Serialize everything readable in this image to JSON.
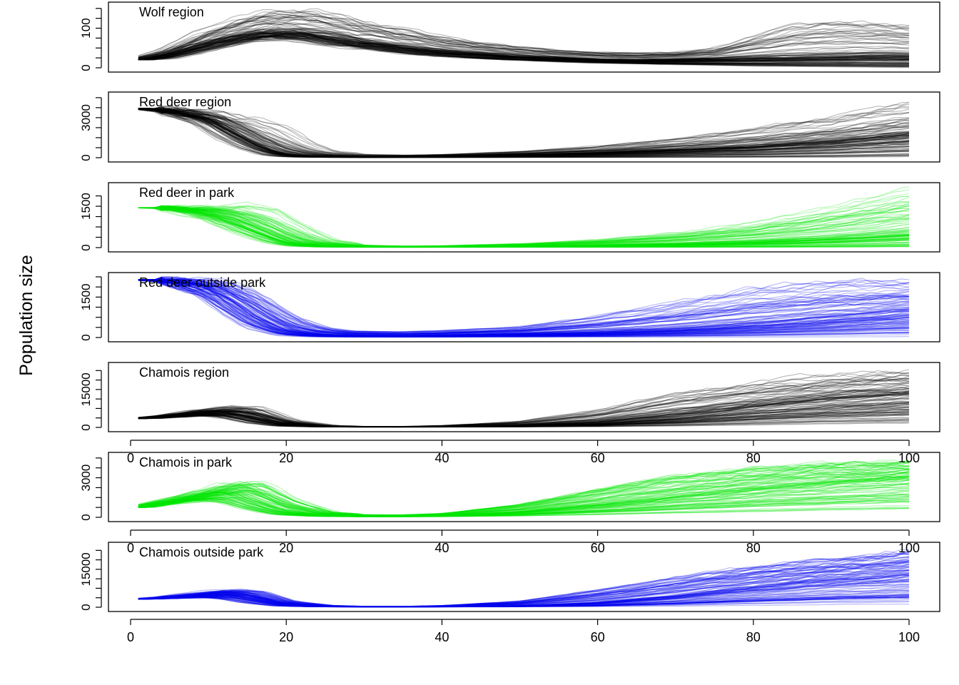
{
  "chart_data": {
    "type": "line",
    "ylabel": "Population size",
    "xlim": [
      0,
      100
    ],
    "x_ticks": [
      0,
      20,
      40,
      60,
      80,
      100
    ],
    "n_trajectories_per_panel": "many (stochastic simulation replicates)",
    "panels": [
      {
        "title": "Wolf region",
        "color": "#000000",
        "ylim": [
          0,
          155
        ],
        "y_ticks": [
          0,
          100
        ],
        "x_ticks_shown": false,
        "envelope": {
          "x": [
            1,
            5,
            10,
            15,
            18,
            22,
            25,
            30,
            35,
            40,
            45,
            50,
            55,
            60,
            65,
            70,
            75,
            80,
            85,
            90,
            95,
            100
          ],
          "low": [
            20,
            24,
            45,
            65,
            72,
            70,
            60,
            48,
            36,
            28,
            22,
            18,
            15,
            12,
            10,
            8,
            6,
            4,
            3,
            2,
            1,
            0
          ],
          "mid": [
            20,
            35,
            62,
            85,
            92,
            88,
            80,
            65,
            52,
            42,
            35,
            28,
            24,
            20,
            19,
            20,
            22,
            24,
            25,
            28,
            30,
            30
          ],
          "high": [
            20,
            45,
            95,
            130,
            145,
            150,
            140,
            120,
            100,
            80,
            65,
            55,
            45,
            40,
            38,
            40,
            50,
            80,
            110,
            120,
            118,
            110
          ]
        }
      },
      {
        "title": "Red deer region",
        "color": "#000000",
        "ylim": [
          0,
          4600
        ],
        "y_ticks": [
          0,
          3000
        ],
        "x_ticks_shown": false,
        "envelope": {
          "x": [
            1,
            5,
            10,
            12,
            15,
            18,
            20,
            22,
            25,
            30,
            35,
            40,
            50,
            60,
            70,
            80,
            90,
            100
          ],
          "low": [
            3700,
            3400,
            2400,
            1500,
            700,
            200,
            80,
            40,
            20,
            10,
            10,
            10,
            10,
            10,
            10,
            10,
            10,
            50
          ],
          "mid": [
            3700,
            3550,
            3000,
            2500,
            1500,
            600,
            300,
            150,
            80,
            50,
            60,
            100,
            200,
            350,
            550,
            800,
            1200,
            1700
          ],
          "high": [
            3700,
            3650,
            3450,
            3200,
            3000,
            2600,
            2000,
            1200,
            500,
            250,
            200,
            250,
            500,
            900,
            1500,
            2300,
            3200,
            4300
          ]
        }
      },
      {
        "title": "Red deer in park",
        "color": "#00e600",
        "ylim": [
          0,
          2200
        ],
        "y_ticks": [
          0,
          1500
        ],
        "x_ticks_shown": false,
        "envelope": {
          "x": [
            1,
            5,
            10,
            14,
            18,
            21,
            25,
            30,
            35,
            40,
            50,
            60,
            70,
            80,
            90,
            100
          ],
          "low": [
            1450,
            1400,
            1000,
            500,
            150,
            40,
            15,
            10,
            10,
            10,
            10,
            10,
            10,
            10,
            10,
            20
          ],
          "mid": [
            1450,
            1440,
            1300,
            1000,
            500,
            180,
            60,
            30,
            25,
            30,
            50,
            80,
            120,
            200,
            320,
            500
          ],
          "high": [
            1450,
            1460,
            1500,
            1600,
            1400,
            900,
            300,
            90,
            60,
            70,
            150,
            300,
            550,
            900,
            1500,
            2150
          ]
        }
      },
      {
        "title": "Red deer outside park",
        "color": "#0000ee",
        "ylim": [
          0,
          2250
        ],
        "y_ticks": [
          0,
          1500
        ],
        "x_ticks_shown": false,
        "envelope": {
          "x": [
            1,
            5,
            10,
            13,
            16,
            20,
            24,
            28,
            35,
            40,
            50,
            60,
            70,
            80,
            90,
            100
          ],
          "low": [
            2150,
            2050,
            1500,
            800,
            300,
            60,
            20,
            10,
            10,
            10,
            10,
            10,
            10,
            10,
            10,
            20
          ],
          "mid": [
            2150,
            2100,
            1900,
            1500,
            900,
            300,
            120,
            80,
            60,
            80,
            130,
            200,
            320,
            500,
            750,
            1000
          ],
          "high": [
            2150,
            2160,
            2150,
            2000,
            1700,
            900,
            400,
            250,
            220,
            260,
            400,
            800,
            1300,
            1850,
            2100,
            2100
          ]
        }
      },
      {
        "title": "Chamois region",
        "color": "#000000",
        "ylim": [
          0,
          24000
        ],
        "y_ticks": [
          0,
          15000
        ],
        "x_ticks_shown": true,
        "envelope": {
          "x": [
            1,
            5,
            10,
            13,
            16,
            20,
            25,
            30,
            35,
            40,
            50,
            60,
            70,
            80,
            90,
            100
          ],
          "low": [
            3500,
            4000,
            4500,
            3500,
            1500,
            400,
            150,
            100,
            100,
            100,
            150,
            200,
            300,
            500,
            800,
            1000
          ],
          "mid": [
            3500,
            4500,
            6000,
            6300,
            4500,
            1500,
            400,
            200,
            200,
            300,
            700,
            1800,
            4500,
            8000,
            11000,
            13000
          ],
          "high": [
            3500,
            5000,
            7500,
            8500,
            8000,
            3000,
            800,
            400,
            400,
            800,
            2500,
            7000,
            14000,
            18000,
            21000,
            23000
          ]
        }
      },
      {
        "title": "Chamois in park",
        "color": "#00e600",
        "ylim": [
          0,
          4600
        ],
        "y_ticks": [
          0,
          3000
        ],
        "x_ticks_shown": true,
        "envelope": {
          "x": [
            1,
            5,
            10,
            13,
            16,
            20,
            25,
            30,
            35,
            40,
            50,
            60,
            70,
            80,
            90,
            100
          ],
          "low": [
            750,
            1000,
            1200,
            900,
            400,
            120,
            50,
            30,
            30,
            40,
            60,
            100,
            150,
            200,
            250,
            300
          ],
          "mid": [
            750,
            1200,
            1700,
            1900,
            1300,
            450,
            150,
            90,
            80,
            120,
            400,
            900,
            1500,
            2100,
            2600,
            3000
          ],
          "high": [
            750,
            1350,
            2100,
            2600,
            2700,
            1400,
            400,
            200,
            200,
            300,
            1000,
            2200,
            3200,
            3800,
            4100,
            4200
          ]
        }
      },
      {
        "title": "Chamois outside park",
        "color": "#0000ee",
        "ylim": [
          0,
          24000
        ],
        "y_ticks": [
          0,
          15000
        ],
        "x_ticks_shown": true,
        "envelope": {
          "x": [
            1,
            5,
            10,
            13,
            16,
            20,
            25,
            30,
            35,
            40,
            50,
            60,
            70,
            80,
            90,
            100
          ],
          "low": [
            3200,
            3500,
            3700,
            2800,
            1200,
            300,
            100,
            80,
            80,
            80,
            120,
            200,
            300,
            500,
            700,
            900
          ],
          "mid": [
            3200,
            3800,
            5000,
            5300,
            3800,
            1200,
            300,
            180,
            180,
            250,
            600,
            1800,
            4500,
            8000,
            11000,
            13000
          ],
          "high": [
            3200,
            4200,
            6200,
            7000,
            6500,
            2500,
            700,
            350,
            350,
            700,
            2500,
            7000,
            12000,
            16500,
            19500,
            22500
          ]
        }
      }
    ]
  }
}
